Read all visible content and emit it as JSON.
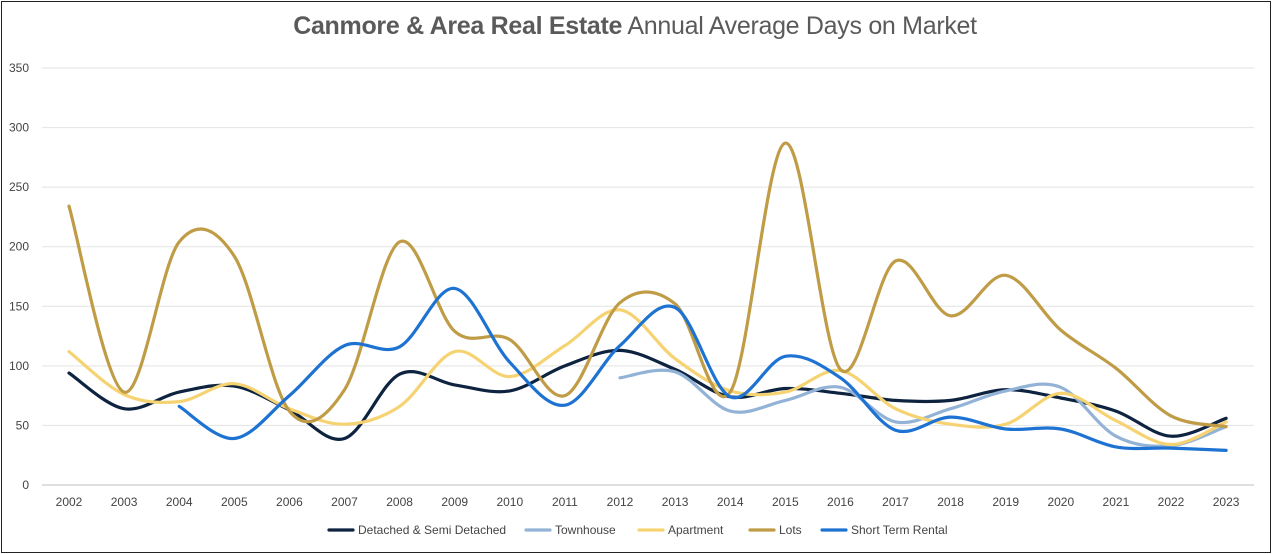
{
  "chart_data": {
    "type": "line",
    "title_bold": "Canmore & Area Real Estate",
    "title_rest": "Annual Average Days on Market",
    "xlabel": "",
    "ylabel": "",
    "ylim": [
      0,
      350
    ],
    "yticks": [
      "0",
      "50",
      "100",
      "150",
      "200",
      "250",
      "300",
      "350"
    ],
    "grid": true,
    "legend_position": "bottom",
    "categories": [
      "2002",
      "2003",
      "2004",
      "2005",
      "2006",
      "2007",
      "2008",
      "2009",
      "2010",
      "2011",
      "2012",
      "2013",
      "2014",
      "2015",
      "2016",
      "2017",
      "2018",
      "2019",
      "2020",
      "2021",
      "2022",
      "2023"
    ],
    "series": [
      {
        "name": "Detached & Semi Detached",
        "color": "#0d2340",
        "values": [
          94,
          64,
          78,
          83,
          63,
          39,
          93,
          84,
          79,
          100,
          113,
          97,
          74,
          81,
          77,
          71,
          71,
          80,
          73,
          62,
          41,
          56
        ]
      },
      {
        "name": "Townhouse",
        "color": "#93b3d6",
        "values": [
          null,
          null,
          null,
          null,
          null,
          null,
          null,
          null,
          null,
          null,
          90,
          95,
          62,
          71,
          82,
          53,
          64,
          79,
          82,
          41,
          33,
          49
        ]
      },
      {
        "name": "Apartment",
        "color": "#f6d372",
        "values": [
          112,
          76,
          70,
          85,
          64,
          51,
          66,
          112,
          91,
          117,
          147,
          106,
          79,
          78,
          96,
          64,
          51,
          51,
          77,
          54,
          34,
          53
        ]
      },
      {
        "name": "Lots",
        "color": "#bf9c45",
        "values": [
          234,
          78,
          204,
          192,
          62,
          80,
          204,
          129,
          122,
          75,
          153,
          152,
          78,
          287,
          97,
          188,
          142,
          176,
          130,
          98,
          58,
          49
        ]
      },
      {
        "name": "Short Term Rental",
        "color": "#1e73d2",
        "values": [
          null,
          null,
          66,
          39,
          75,
          117,
          116,
          165,
          103,
          67,
          117,
          149,
          74,
          108,
          90,
          46,
          57,
          47,
          47,
          32,
          31,
          29
        ]
      }
    ]
  }
}
